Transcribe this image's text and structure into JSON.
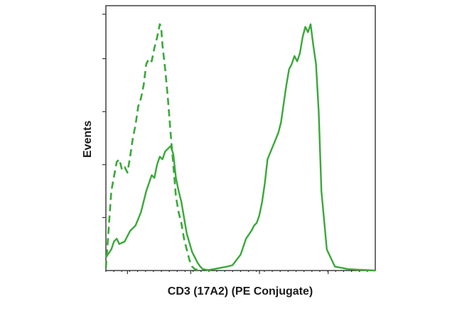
{
  "chart_data": {
    "type": "line",
    "title": "",
    "xlabel": "CD3 (17A2) (PE Conjugate)",
    "ylabel": "Events",
    "x_scale": "log",
    "xlim": [
      0,
      100
    ],
    "ylim": [
      0,
      100
    ],
    "grid": false,
    "legend": "none",
    "colors": {
      "line": "#3aa83a",
      "axis": "#333333",
      "text": "#1a1a1a"
    },
    "series": [
      {
        "style": "dashed",
        "x": [
          0,
          2,
          4,
          5,
          6,
          7,
          8,
          9,
          10,
          11,
          12,
          13,
          14,
          15,
          16,
          17,
          18,
          19,
          20,
          20.5,
          21,
          22,
          23,
          24,
          25,
          26,
          27,
          28,
          29,
          30,
          31,
          32,
          33,
          35
        ],
        "y": [
          1,
          30,
          41,
          42,
          38,
          39,
          37,
          43,
          50,
          55,
          62,
          65,
          70,
          78,
          80,
          79,
          84,
          88,
          93,
          92,
          85,
          76,
          65,
          52,
          40,
          28,
          22,
          18,
          12,
          8,
          4,
          1.5,
          0.5,
          0
        ]
      },
      {
        "style": "solid",
        "x": [
          0,
          2,
          3,
          4,
          5,
          7,
          9,
          11,
          13,
          15,
          17,
          18,
          19,
          20,
          21,
          22,
          24,
          25,
          26,
          27,
          28,
          30,
          32,
          34,
          35,
          36,
          38,
          40,
          45,
          47,
          50,
          52,
          54,
          55,
          56,
          57,
          58,
          59,
          60,
          62,
          64,
          65,
          66,
          67,
          68,
          69,
          70,
          71,
          72,
          73,
          74,
          75,
          76,
          77,
          78,
          79,
          80,
          82,
          85,
          90,
          100
        ],
        "y": [
          5,
          8,
          11,
          12,
          10,
          11,
          15,
          17,
          22,
          30,
          36,
          35,
          40,
          43,
          42,
          45,
          47,
          44,
          35,
          30,
          26,
          14,
          7,
          3,
          1.5,
          0.5,
          0.2,
          0.5,
          1.5,
          2,
          6,
          12,
          15,
          17,
          18,
          21,
          26,
          33,
          42,
          47,
          52,
          56,
          63,
          70,
          76,
          78,
          81,
          79,
          82,
          88,
          92,
          90,
          93,
          85,
          78,
          60,
          30,
          8,
          1.5,
          0.5,
          0
        ]
      }
    ]
  }
}
